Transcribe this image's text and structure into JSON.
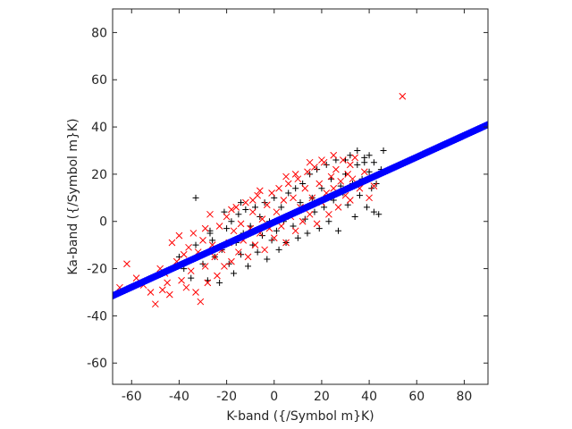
{
  "chart_data": {
    "type": "scatter",
    "xlabel": "K-band ({/Symbol m}K)",
    "ylabel": "Ka-band ({/Symbol m}K)",
    "xlim": [
      -68,
      90
    ],
    "ylim": [
      -69,
      90
    ],
    "xticks": [
      -60,
      -40,
      -20,
      0,
      20,
      40,
      60,
      80
    ],
    "yticks": [
      -60,
      -40,
      -20,
      0,
      20,
      40,
      60,
      80
    ],
    "grid": false,
    "series": [
      {
        "marker": "plus",
        "color": "#000000",
        "points": [
          [
            -40,
            -15
          ],
          [
            -38,
            -20
          ],
          [
            -35,
            -24
          ],
          [
            -33,
            -10
          ],
          [
            -30,
            -18
          ],
          [
            -28,
            -25
          ],
          [
            -27,
            -5
          ],
          [
            -26,
            -8
          ],
          [
            -25,
            -15
          ],
          [
            -23,
            -26
          ],
          [
            -22,
            -12
          ],
          [
            -21,
            4
          ],
          [
            -20,
            -3
          ],
          [
            -19,
            -18
          ],
          [
            -18,
            0
          ],
          [
            -17,
            -22
          ],
          [
            -16,
            -9
          ],
          [
            -15,
            3
          ],
          [
            -14,
            -14
          ],
          [
            -13,
            -5
          ],
          [
            -12,
            5
          ],
          [
            -11,
            -19
          ],
          [
            -10,
            -2
          ],
          [
            -9,
            -10
          ],
          [
            -8,
            6
          ],
          [
            -7,
            -13
          ],
          [
            -6,
            2
          ],
          [
            -5,
            -6
          ],
          [
            -4,
            8
          ],
          [
            -3,
            -16
          ],
          [
            -2,
            0
          ],
          [
            -1,
            -8
          ],
          [
            0,
            10
          ],
          [
            1,
            -4
          ],
          [
            2,
            -12
          ],
          [
            3,
            6
          ],
          [
            4,
            0
          ],
          [
            5,
            -9
          ],
          [
            6,
            12
          ],
          [
            7,
            3
          ],
          [
            8,
            -2
          ],
          [
            9,
            14
          ],
          [
            10,
            -7
          ],
          [
            11,
            8
          ],
          [
            12,
            16
          ],
          [
            13,
            1
          ],
          [
            14,
            -5
          ],
          [
            15,
            20
          ],
          [
            16,
            10
          ],
          [
            17,
            4
          ],
          [
            18,
            22
          ],
          [
            19,
            -3
          ],
          [
            20,
            14
          ],
          [
            21,
            6
          ],
          [
            22,
            24
          ],
          [
            23,
            0
          ],
          [
            24,
            18
          ],
          [
            25,
            9
          ],
          [
            26,
            26
          ],
          [
            27,
            -4
          ],
          [
            28,
            15
          ],
          [
            29,
            12
          ],
          [
            30,
            20
          ],
          [
            31,
            7
          ],
          [
            32,
            28
          ],
          [
            33,
            16
          ],
          [
            34,
            2
          ],
          [
            35,
            24
          ],
          [
            36,
            11
          ],
          [
            37,
            18
          ],
          [
            38,
            27
          ],
          [
            39,
            6
          ],
          [
            40,
            21
          ],
          [
            41,
            14
          ],
          [
            42,
            4
          ],
          [
            43,
            16
          ],
          [
            44,
            3
          ],
          [
            45,
            22
          ],
          [
            46,
            30
          ],
          [
            -33,
            10
          ],
          [
            -27,
            -4
          ],
          [
            -14,
            8
          ],
          [
            30,
            26
          ],
          [
            35,
            30
          ],
          [
            38,
            25
          ],
          [
            40,
            28
          ],
          [
            42,
            25
          ]
        ]
      },
      {
        "marker": "x",
        "color": "#ff0000",
        "points": [
          [
            -65,
            -28
          ],
          [
            -62,
            -18
          ],
          [
            -58,
            -24
          ],
          [
            -55,
            -27
          ],
          [
            -52,
            -30
          ],
          [
            -50,
            -35
          ],
          [
            -48,
            -20
          ],
          [
            -46,
            -22
          ],
          [
            -45,
            -26
          ],
          [
            -43,
            -9
          ],
          [
            -41,
            -17
          ],
          [
            -40,
            -6
          ],
          [
            -38,
            -14
          ],
          [
            -37,
            -28
          ],
          [
            -36,
            -11
          ],
          [
            -35,
            -21
          ],
          [
            -34,
            -5
          ],
          [
            -33,
            -30
          ],
          [
            -32,
            -13
          ],
          [
            -31,
            -34
          ],
          [
            -30,
            -8
          ],
          [
            -29,
            -19
          ],
          [
            -28,
            -26
          ],
          [
            -27,
            3
          ],
          [
            -26,
            -10
          ],
          [
            -25,
            -15
          ],
          [
            -24,
            -23
          ],
          [
            -23,
            -2
          ],
          [
            -22,
            -12
          ],
          [
            -21,
            -19
          ],
          [
            -20,
            2
          ],
          [
            -19,
            -9
          ],
          [
            -18,
            -17
          ],
          [
            -17,
            -4
          ],
          [
            -16,
            6
          ],
          [
            -15,
            -13
          ],
          [
            -14,
            -1
          ],
          [
            -13,
            -8
          ],
          [
            -12,
            8
          ],
          [
            -11,
            -15
          ],
          [
            -10,
            -3
          ],
          [
            -9,
            4
          ],
          [
            -8,
            -10
          ],
          [
            -7,
            11
          ],
          [
            -6,
            -5
          ],
          [
            -5,
            1
          ],
          [
            -4,
            -12
          ],
          [
            -3,
            7
          ],
          [
            -2,
            -3
          ],
          [
            -1,
            12
          ],
          [
            0,
            -7
          ],
          [
            1,
            4
          ],
          [
            2,
            14
          ],
          [
            3,
            -2
          ],
          [
            4,
            9
          ],
          [
            5,
            -9
          ],
          [
            6,
            16
          ],
          [
            7,
            2
          ],
          [
            8,
            10
          ],
          [
            9,
            -4
          ],
          [
            10,
            18
          ],
          [
            11,
            6
          ],
          [
            12,
            0
          ],
          [
            13,
            14
          ],
          [
            14,
            21
          ],
          [
            15,
            3
          ],
          [
            16,
            10
          ],
          [
            17,
            23
          ],
          [
            18,
            -1
          ],
          [
            19,
            16
          ],
          [
            20,
            8
          ],
          [
            21,
            25
          ],
          [
            22,
            12
          ],
          [
            23,
            3
          ],
          [
            24,
            19
          ],
          [
            25,
            14
          ],
          [
            26,
            22
          ],
          [
            27,
            6
          ],
          [
            28,
            17
          ],
          [
            29,
            26
          ],
          [
            30,
            11
          ],
          [
            31,
            20
          ],
          [
            32,
            9
          ],
          [
            33,
            18
          ],
          [
            34,
            27
          ],
          [
            36,
            14
          ],
          [
            38,
            21
          ],
          [
            40,
            10
          ],
          [
            42,
            15
          ],
          [
            54,
            53
          ],
          [
            -47,
            -29
          ],
          [
            -44,
            -31
          ],
          [
            -39,
            -25
          ],
          [
            -29,
            -3
          ],
          [
            -18,
            5
          ],
          [
            -9,
            9
          ],
          [
            -6,
            13
          ],
          [
            5,
            19
          ],
          [
            9,
            20
          ],
          [
            15,
            25
          ],
          [
            20,
            26
          ],
          [
            25,
            28
          ],
          [
            32,
            24
          ]
        ]
      },
      {
        "marker": "circle",
        "color": "#0000ff",
        "line": {
          "slope": 0.459,
          "intercept": -0.3,
          "from": -68,
          "to": 90
        }
      }
    ]
  }
}
